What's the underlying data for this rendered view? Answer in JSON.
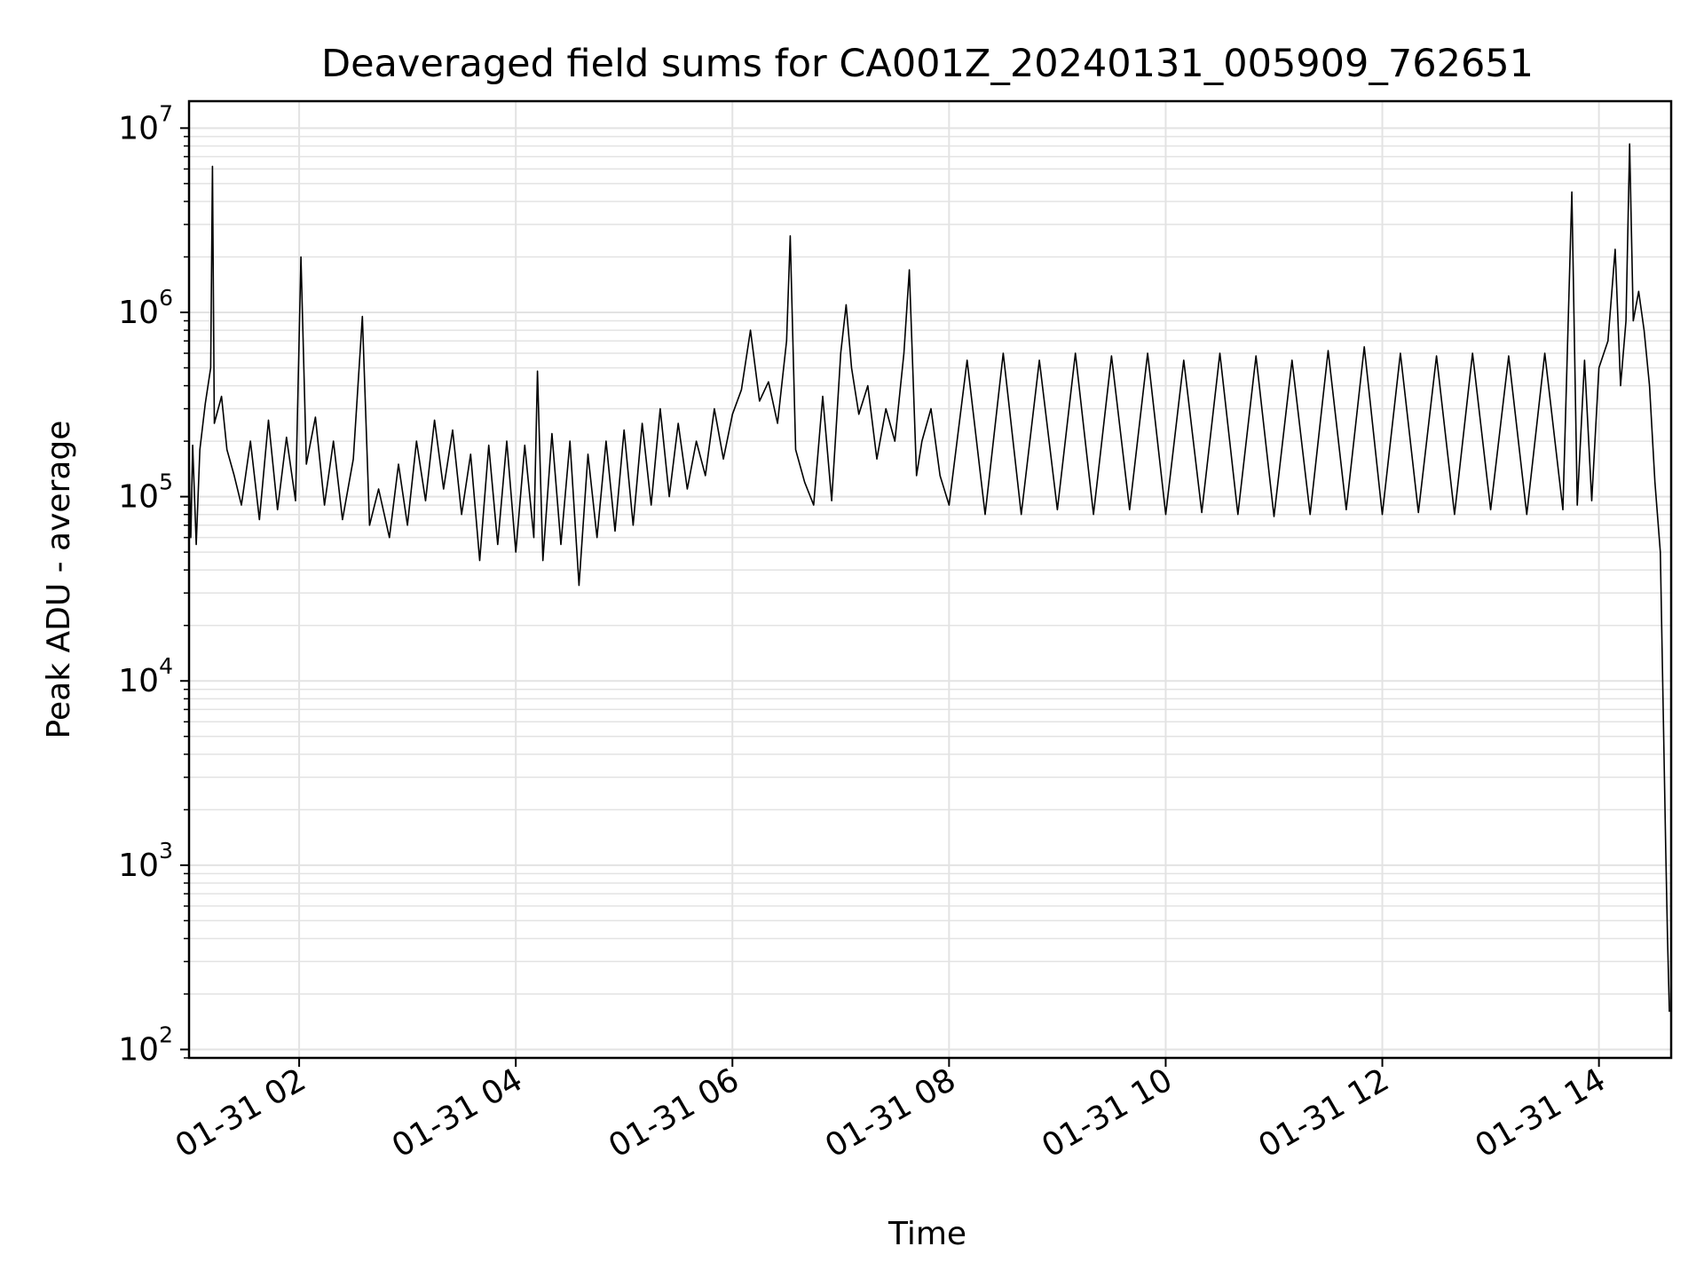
{
  "chart_data": {
    "type": "line",
    "title": "Deaveraged field sums for CA001Z_20240131_005909_762651",
    "xlabel": "Time",
    "ylabel": "Peak ADU - average",
    "yscale": "log",
    "ylim": [
      90,
      14000000
    ],
    "xlim": [
      "01-31 00:59",
      "01-31 14:40"
    ],
    "grid": true,
    "line_color": "#000000",
    "grid_color": "#e3e3e3",
    "x_ticks": [
      {
        "t": "01-31 02:00",
        "label": "01-31 02"
      },
      {
        "t": "01-31 04:00",
        "label": "01-31 04"
      },
      {
        "t": "01-31 06:00",
        "label": "01-31 06"
      },
      {
        "t": "01-31 08:00",
        "label": "01-31 08"
      },
      {
        "t": "01-31 10:00",
        "label": "01-31 10"
      },
      {
        "t": "01-31 12:00",
        "label": "01-31 12"
      },
      {
        "t": "01-31 14:00",
        "label": "01-31 14"
      }
    ],
    "y_ticks": [
      {
        "value": 100,
        "base": "10",
        "exp": "2"
      },
      {
        "value": 1000,
        "base": "10",
        "exp": "3"
      },
      {
        "value": 10000,
        "base": "10",
        "exp": "4"
      },
      {
        "value": 100000,
        "base": "10",
        "exp": "5"
      },
      {
        "value": 1000000,
        "base": "10",
        "exp": "6"
      },
      {
        "value": 10000000,
        "base": "10",
        "exp": "7"
      }
    ],
    "series": [
      {
        "points": [
          [
            "01-31 00:59",
            150000
          ],
          [
            "01-31 01:00",
            60000
          ],
          [
            "01-31 01:01",
            190000
          ],
          [
            "01-31 01:03",
            55000
          ],
          [
            "01-31 01:05",
            180000
          ],
          [
            "01-31 01:08",
            320000
          ],
          [
            "01-31 01:11",
            500000
          ],
          [
            "01-31 01:12",
            6200000
          ],
          [
            "01-31 01:13",
            250000
          ],
          [
            "01-31 01:17",
            350000
          ],
          [
            "01-31 01:20",
            180000
          ],
          [
            "01-31 01:24",
            130000
          ],
          [
            "01-31 01:28",
            90000
          ],
          [
            "01-31 01:33",
            200000
          ],
          [
            "01-31 01:38",
            75000
          ],
          [
            "01-31 01:43",
            260000
          ],
          [
            "01-31 01:48",
            85000
          ],
          [
            "01-31 01:53",
            210000
          ],
          [
            "01-31 01:58",
            95000
          ],
          [
            "01-31 02:01",
            2000000
          ],
          [
            "01-31 02:04",
            150000
          ],
          [
            "01-31 02:09",
            270000
          ],
          [
            "01-31 02:14",
            90000
          ],
          [
            "01-31 02:19",
            200000
          ],
          [
            "01-31 02:24",
            75000
          ],
          [
            "01-31 02:30",
            160000
          ],
          [
            "01-31 02:35",
            950000
          ],
          [
            "01-31 02:39",
            70000
          ],
          [
            "01-31 02:44",
            110000
          ],
          [
            "01-31 02:50",
            60000
          ],
          [
            "01-31 02:55",
            150000
          ],
          [
            "01-31 03:00",
            70000
          ],
          [
            "01-31 03:05",
            200000
          ],
          [
            "01-31 03:10",
            95000
          ],
          [
            "01-31 03:15",
            260000
          ],
          [
            "01-31 03:20",
            110000
          ],
          [
            "01-31 03:25",
            230000
          ],
          [
            "01-31 03:30",
            80000
          ],
          [
            "01-31 03:35",
            170000
          ],
          [
            "01-31 03:40",
            45000
          ],
          [
            "01-31 03:45",
            190000
          ],
          [
            "01-31 03:50",
            55000
          ],
          [
            "01-31 03:55",
            200000
          ],
          [
            "01-31 04:00",
            50000
          ],
          [
            "01-31 04:05",
            190000
          ],
          [
            "01-31 04:10",
            60000
          ],
          [
            "01-31 04:12",
            480000
          ],
          [
            "01-31 04:15",
            45000
          ],
          [
            "01-31 04:20",
            220000
          ],
          [
            "01-31 04:25",
            55000
          ],
          [
            "01-31 04:30",
            200000
          ],
          [
            "01-31 04:35",
            33000
          ],
          [
            "01-31 04:40",
            170000
          ],
          [
            "01-31 04:45",
            60000
          ],
          [
            "01-31 04:50",
            200000
          ],
          [
            "01-31 04:55",
            65000
          ],
          [
            "01-31 05:00",
            230000
          ],
          [
            "01-31 05:05",
            70000
          ],
          [
            "01-31 05:10",
            250000
          ],
          [
            "01-31 05:15",
            90000
          ],
          [
            "01-31 05:20",
            300000
          ],
          [
            "01-31 05:25",
            100000
          ],
          [
            "01-31 05:30",
            250000
          ],
          [
            "01-31 05:35",
            110000
          ],
          [
            "01-31 05:40",
            200000
          ],
          [
            "01-31 05:45",
            130000
          ],
          [
            "01-31 05:50",
            300000
          ],
          [
            "01-31 05:55",
            160000
          ],
          [
            "01-31 06:00",
            280000
          ],
          [
            "01-31 06:05",
            380000
          ],
          [
            "01-31 06:10",
            800000
          ],
          [
            "01-31 06:15",
            330000
          ],
          [
            "01-31 06:20",
            420000
          ],
          [
            "01-31 06:25",
            250000
          ],
          [
            "01-31 06:30",
            700000
          ],
          [
            "01-31 06:32",
            2600000
          ],
          [
            "01-31 06:35",
            180000
          ],
          [
            "01-31 06:40",
            120000
          ],
          [
            "01-31 06:45",
            90000
          ],
          [
            "01-31 06:50",
            350000
          ],
          [
            "01-31 06:55",
            95000
          ],
          [
            "01-31 07:00",
            600000
          ],
          [
            "01-31 07:03",
            1100000
          ],
          [
            "01-31 07:06",
            500000
          ],
          [
            "01-31 07:10",
            280000
          ],
          [
            "01-31 07:15",
            400000
          ],
          [
            "01-31 07:20",
            160000
          ],
          [
            "01-31 07:25",
            300000
          ],
          [
            "01-31 07:30",
            200000
          ],
          [
            "01-31 07:35",
            600000
          ],
          [
            "01-31 07:38",
            1700000
          ],
          [
            "01-31 07:42",
            130000
          ],
          [
            "01-31 07:45",
            200000
          ],
          [
            "01-31 07:50",
            300000
          ],
          [
            "01-31 07:55",
            130000
          ],
          [
            "01-31 08:00",
            90000
          ],
          [
            "01-31 08:10",
            550000
          ],
          [
            "01-31 08:20",
            80000
          ],
          [
            "01-31 08:30",
            600000
          ],
          [
            "01-31 08:40",
            80000
          ],
          [
            "01-31 08:50",
            550000
          ],
          [
            "01-31 09:00",
            85000
          ],
          [
            "01-31 09:10",
            600000
          ],
          [
            "01-31 09:20",
            80000
          ],
          [
            "01-31 09:30",
            580000
          ],
          [
            "01-31 09:40",
            85000
          ],
          [
            "01-31 09:50",
            600000
          ],
          [
            "01-31 10:00",
            80000
          ],
          [
            "01-31 10:10",
            550000
          ],
          [
            "01-31 10:20",
            82000
          ],
          [
            "01-31 10:30",
            600000
          ],
          [
            "01-31 10:40",
            80000
          ],
          [
            "01-31 10:50",
            580000
          ],
          [
            "01-31 11:00",
            78000
          ],
          [
            "01-31 11:10",
            550000
          ],
          [
            "01-31 11:20",
            80000
          ],
          [
            "01-31 11:30",
            620000
          ],
          [
            "01-31 11:40",
            85000
          ],
          [
            "01-31 11:50",
            650000
          ],
          [
            "01-31 12:00",
            80000
          ],
          [
            "01-31 12:10",
            600000
          ],
          [
            "01-31 12:20",
            82000
          ],
          [
            "01-31 12:30",
            580000
          ],
          [
            "01-31 12:40",
            80000
          ],
          [
            "01-31 12:50",
            600000
          ],
          [
            "01-31 13:00",
            85000
          ],
          [
            "01-31 13:10",
            580000
          ],
          [
            "01-31 13:20",
            80000
          ],
          [
            "01-31 13:30",
            600000
          ],
          [
            "01-31 13:40",
            85000
          ],
          [
            "01-31 13:45",
            4500000
          ],
          [
            "01-31 13:48",
            90000
          ],
          [
            "01-31 13:52",
            550000
          ],
          [
            "01-31 13:56",
            95000
          ],
          [
            "01-31 14:00",
            500000
          ],
          [
            "01-31 14:05",
            700000
          ],
          [
            "01-31 14:09",
            2200000
          ],
          [
            "01-31 14:12",
            400000
          ],
          [
            "01-31 14:15",
            900000
          ],
          [
            "01-31 14:17",
            8200000
          ],
          [
            "01-31 14:19",
            900000
          ],
          [
            "01-31 14:22",
            1300000
          ],
          [
            "01-31 14:25",
            800000
          ],
          [
            "01-31 14:28",
            400000
          ],
          [
            "01-31 14:31",
            120000
          ],
          [
            "01-31 14:34",
            50000
          ],
          [
            "01-31 14:37",
            1200
          ],
          [
            "01-31 14:38",
            400
          ],
          [
            "01-31 14:39",
            160
          ]
        ]
      }
    ]
  }
}
